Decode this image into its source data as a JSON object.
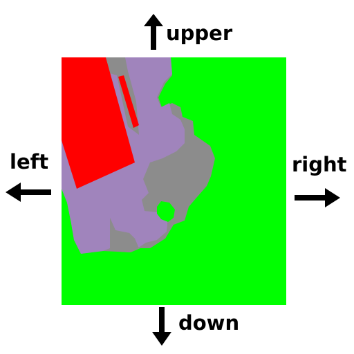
{
  "directions": {
    "upper": "upper",
    "left": "left",
    "right": "right",
    "down": "down"
  },
  "map": {
    "colors": {
      "background_region": "#00ff00",
      "purple_region": "#a084bc",
      "gray_region": "#8c8c8c",
      "red_region": "#ff0000"
    }
  },
  "icons": {
    "upper": "arrow-up-icon",
    "left": "arrow-left-icon",
    "right": "arrow-right-icon",
    "down": "arrow-down-icon"
  }
}
